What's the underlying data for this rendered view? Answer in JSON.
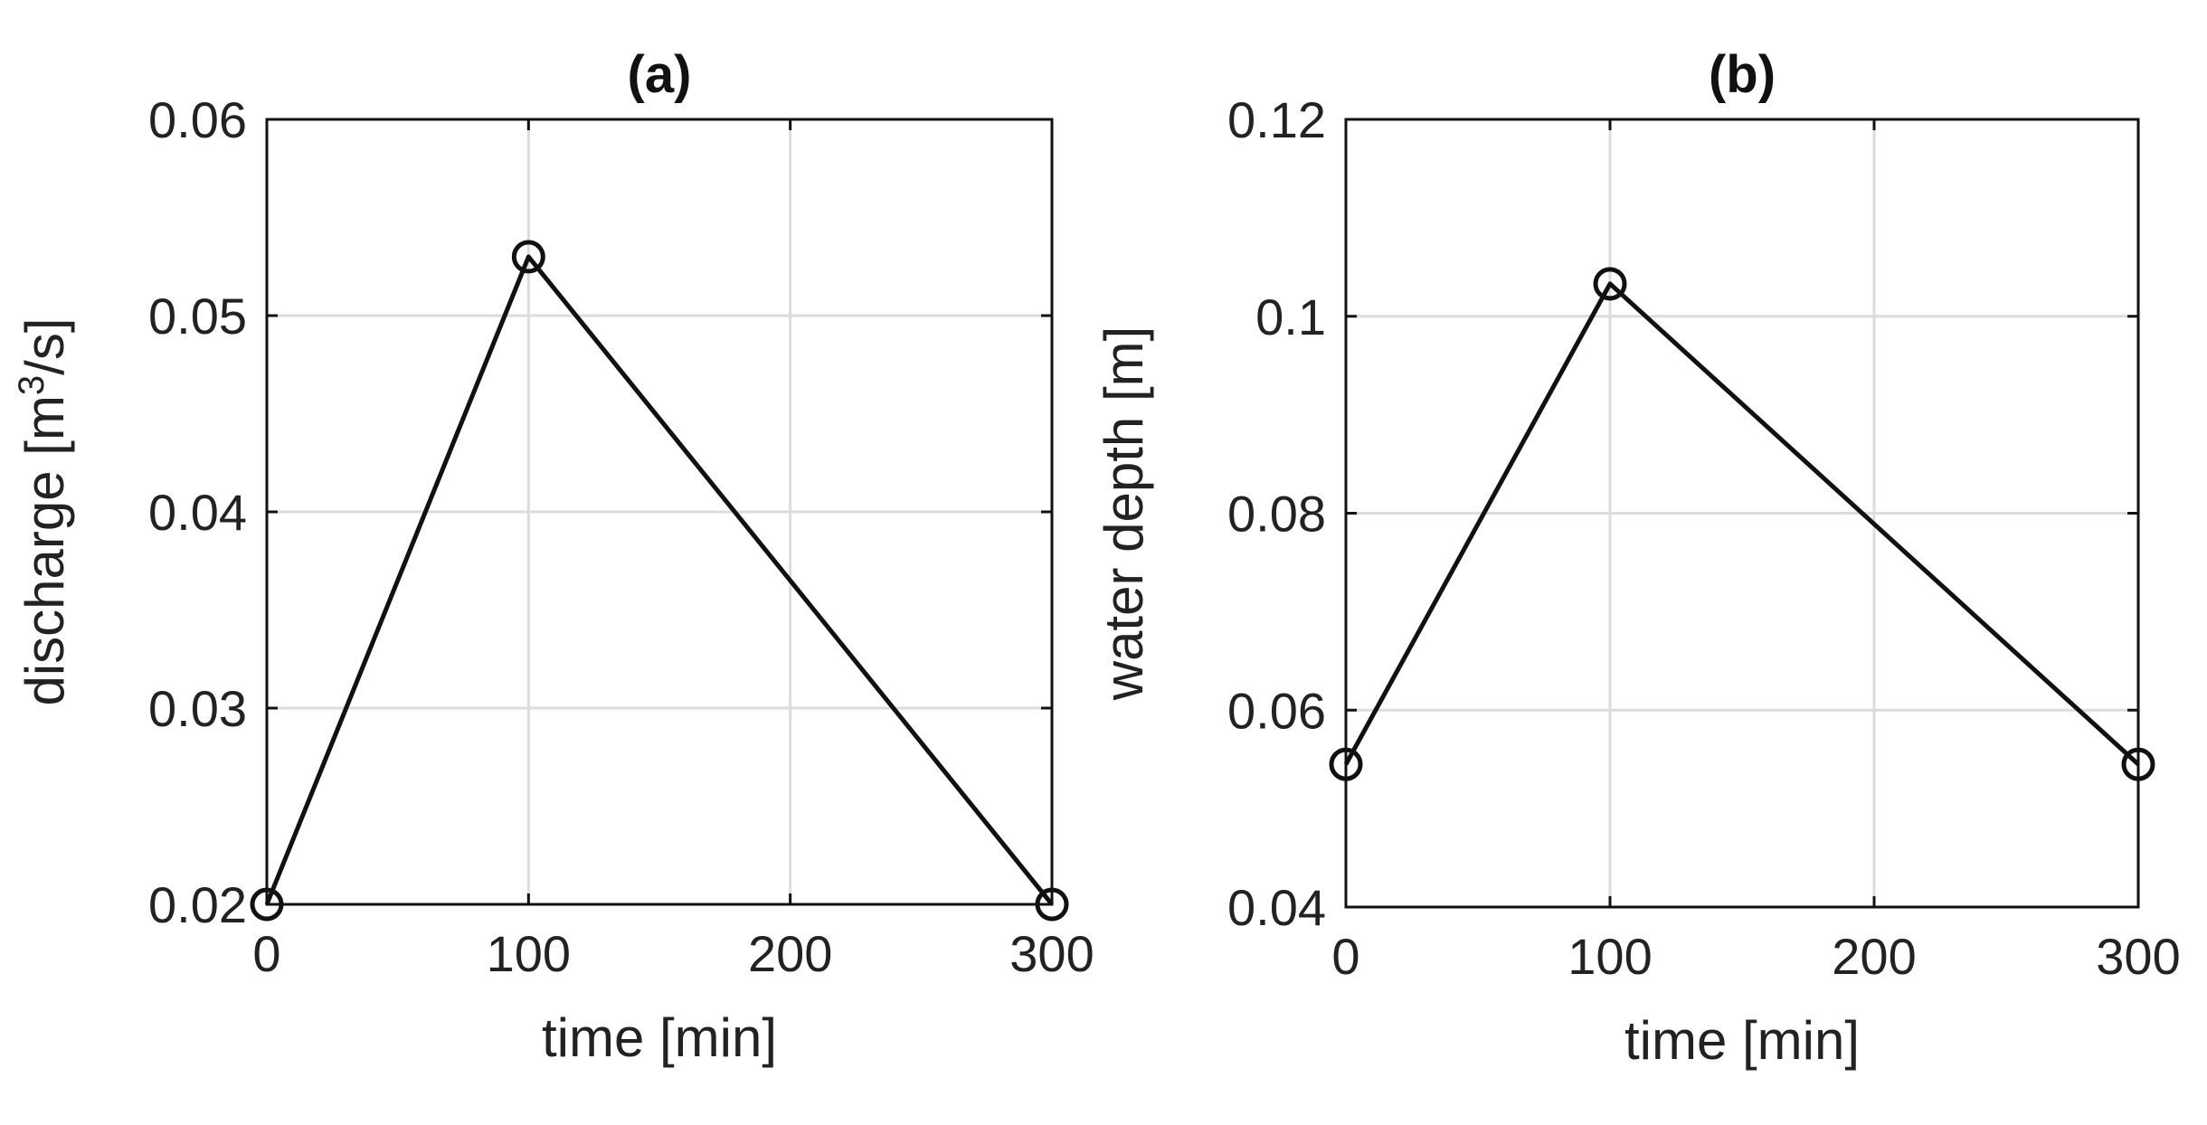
{
  "chart_data": [
    {
      "type": "line",
      "title": "(a)",
      "xlabel": "time [min]",
      "ylabel_parts": [
        "discharge [m",
        "3",
        "/s]"
      ],
      "x": [
        0,
        100,
        300
      ],
      "y": [
        0.02,
        0.053,
        0.02
      ],
      "xlim": [
        0,
        300
      ],
      "ylim": [
        0.02,
        0.06
      ],
      "xticks": [
        0,
        100,
        200,
        300
      ],
      "xtick_labels": [
        "0",
        "100",
        "200",
        "300"
      ],
      "yticks": [
        0.02,
        0.03,
        0.04,
        0.05,
        0.06
      ],
      "ytick_labels": [
        "0.02",
        "0.03",
        "0.04",
        "0.05",
        "0.06"
      ],
      "grid": true,
      "marker": "circle",
      "color": "#111111"
    },
    {
      "type": "line",
      "title": "(b)",
      "xlabel": "time [min]",
      "ylabel_parts": [
        "water depth [m]"
      ],
      "x": [
        0,
        100,
        300
      ],
      "y": [
        0.0545,
        0.1033,
        0.0545
      ],
      "xlim": [
        0,
        300
      ],
      "ylim": [
        0.04,
        0.12
      ],
      "xticks": [
        0,
        100,
        200,
        300
      ],
      "xtick_labels": [
        "0",
        "100",
        "200",
        "300"
      ],
      "yticks": [
        0.04,
        0.06,
        0.08,
        0.1,
        0.12
      ],
      "ytick_labels": [
        "0.04",
        "0.06",
        "0.08",
        "0.1",
        "0.12"
      ],
      "grid": true,
      "marker": "circle",
      "color": "#111111"
    }
  ]
}
